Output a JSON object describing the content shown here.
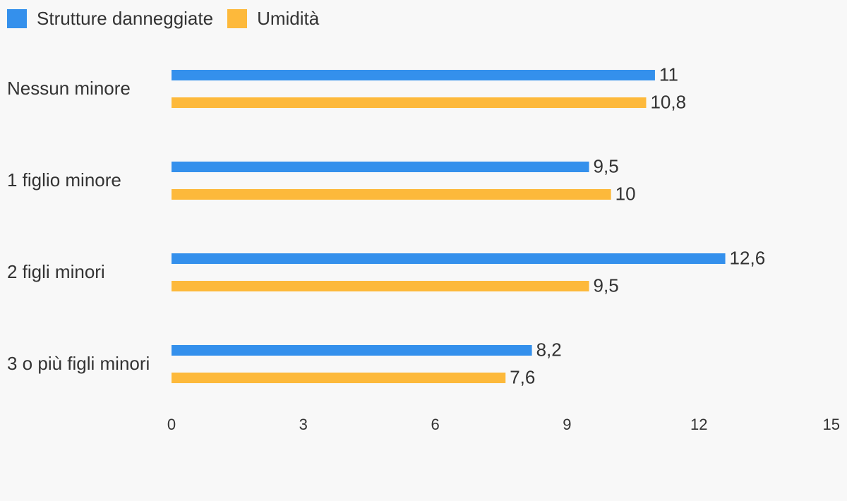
{
  "chart_data": {
    "type": "bar",
    "orientation": "horizontal",
    "categories": [
      "Nessun minore",
      "1 figlio minore",
      "2 figli minori",
      "3 o più figli minori"
    ],
    "series": [
      {
        "name": "Strutture danneggiate",
        "color": "#3490ec",
        "values": [
          11,
          9.5,
          12.6,
          8.2
        ],
        "value_labels": [
          "11",
          "9,5",
          "12,6",
          "8,2"
        ]
      },
      {
        "name": "Umidità",
        "color": "#fdb93b",
        "values": [
          10.8,
          10,
          9.5,
          7.6
        ],
        "value_labels": [
          "10,8",
          "10",
          "9,5",
          "7,6"
        ]
      }
    ],
    "xlim": [
      0,
      15
    ],
    "xticks": [
      0,
      3,
      6,
      9,
      12,
      15
    ],
    "grid": false,
    "legend": "top-left"
  }
}
